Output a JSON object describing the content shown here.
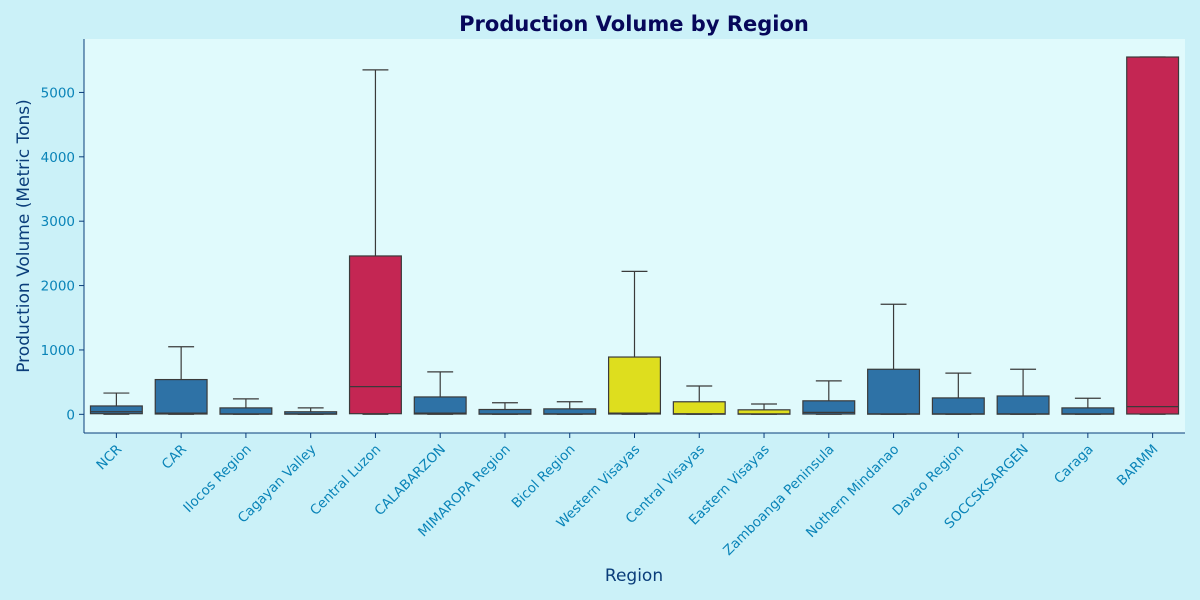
{
  "chart_data": {
    "type": "box",
    "title": "Production Volume by Region",
    "xlabel": "Region",
    "ylabel": "Production Volume (Metric Tons)",
    "ylim": [
      -290,
      5830
    ],
    "yticks": [
      0,
      1000,
      2000,
      3000,
      4000,
      5000
    ],
    "grid": false,
    "categories": [
      "NCR",
      "CAR",
      "Ilocos Region",
      "Cagayan Valley",
      "Central Luzon",
      "CALABARZON",
      "MIMAROPA Region",
      "Bicol Region",
      "Western Visayas",
      "Central Visayas",
      "Eastern Visayas",
      "Zamboanga Peninsula",
      "Nothern Mindanao",
      "Davao Region",
      "SOCCSKSARGEN",
      "Caraga",
      "BARMM"
    ],
    "colors": {
      "blue": "#2e72a6",
      "crimson": "#c42653",
      "yellow": "#dede1e",
      "whisker": "#3a3a3a",
      "plot_bg": "#e0fafc",
      "page_bg": "#cbf1f8"
    },
    "boxes": [
      {
        "category": "NCR",
        "whislo": 0,
        "q1": 10,
        "median": 40,
        "q3": 130,
        "whishi": 330,
        "color": "blue"
      },
      {
        "category": "CAR",
        "whislo": 0,
        "q1": 5,
        "median": 20,
        "q3": 540,
        "whishi": 1050,
        "color": "blue"
      },
      {
        "category": "Ilocos Region",
        "whislo": 0,
        "q1": 2,
        "median": 8,
        "q3": 100,
        "whishi": 240,
        "color": "blue"
      },
      {
        "category": "Cagayan Valley",
        "whislo": 0,
        "q1": 2,
        "median": 8,
        "q3": 40,
        "whishi": 100,
        "color": "blue"
      },
      {
        "category": "Central Luzon",
        "whislo": 0,
        "q1": 10,
        "median": 430,
        "q3": 2460,
        "whishi": 5350,
        "color": "crimson"
      },
      {
        "category": "CALABARZON",
        "whislo": 0,
        "q1": 5,
        "median": 20,
        "q3": 270,
        "whishi": 660,
        "color": "blue"
      },
      {
        "category": "MIMAROPA Region",
        "whislo": 0,
        "q1": 2,
        "median": 8,
        "q3": 75,
        "whishi": 180,
        "color": "blue"
      },
      {
        "category": "Bicol Region",
        "whislo": 0,
        "q1": 2,
        "median": 8,
        "q3": 85,
        "whishi": 195,
        "color": "blue"
      },
      {
        "category": "Western Visayas",
        "whislo": 0,
        "q1": 5,
        "median": 20,
        "q3": 890,
        "whishi": 2220,
        "color": "yellow"
      },
      {
        "category": "Central Visayas",
        "whislo": 0,
        "q1": 2,
        "median": 10,
        "q3": 195,
        "whishi": 440,
        "color": "yellow"
      },
      {
        "category": "Eastern Visayas",
        "whislo": 0,
        "q1": 2,
        "median": 8,
        "q3": 70,
        "whishi": 160,
        "color": "yellow"
      },
      {
        "category": "Zamboanga Peninsula",
        "whislo": 0,
        "q1": 5,
        "median": 30,
        "q3": 210,
        "whishi": 520,
        "color": "blue"
      },
      {
        "category": "Nothern Mindanao",
        "whislo": 0,
        "q1": 2,
        "median": 8,
        "q3": 700,
        "whishi": 1710,
        "color": "blue"
      },
      {
        "category": "Davao Region",
        "whislo": 0,
        "q1": 2,
        "median": 8,
        "q3": 255,
        "whishi": 640,
        "color": "blue"
      },
      {
        "category": "SOCCSKSARGEN",
        "whislo": 0,
        "q1": 2,
        "median": 8,
        "q3": 285,
        "whishi": 700,
        "color": "blue"
      },
      {
        "category": "Caraga",
        "whislo": 0,
        "q1": 2,
        "median": 8,
        "q3": 100,
        "whishi": 250,
        "color": "blue"
      },
      {
        "category": "BARMM",
        "whislo": 0,
        "q1": 5,
        "median": 120,
        "q3": 5550,
        "whishi": 5550,
        "color": "crimson"
      }
    ]
  }
}
